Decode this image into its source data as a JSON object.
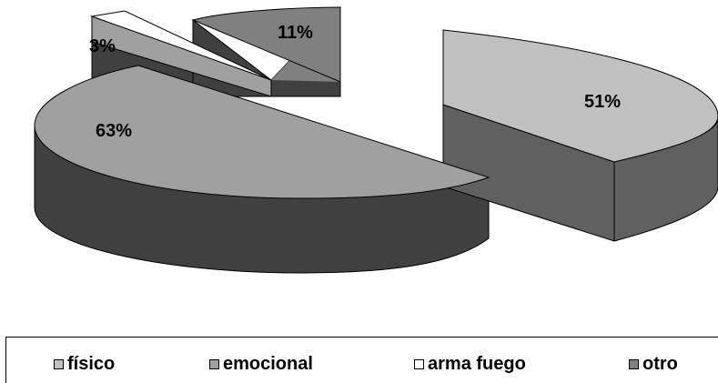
{
  "chart_data": {
    "type": "pie",
    "style": "3d-exploded",
    "slices": [
      {
        "label": "físico",
        "data_label": "51%",
        "color": "#c0c0c0"
      },
      {
        "label": "emocional",
        "data_label": "63%",
        "color": "#a0a0a0"
      },
      {
        "label": "arma fuego",
        "data_label": "3%",
        "color": "#ffffff"
      },
      {
        "label": "otro",
        "data_label": "11%",
        "color": "#808080"
      }
    ],
    "side_colors": {
      "físico": "#606060",
      "emocional": "#404040",
      "arma fuego": "#404040",
      "otro": "#404040"
    },
    "legend_position": "bottom"
  }
}
